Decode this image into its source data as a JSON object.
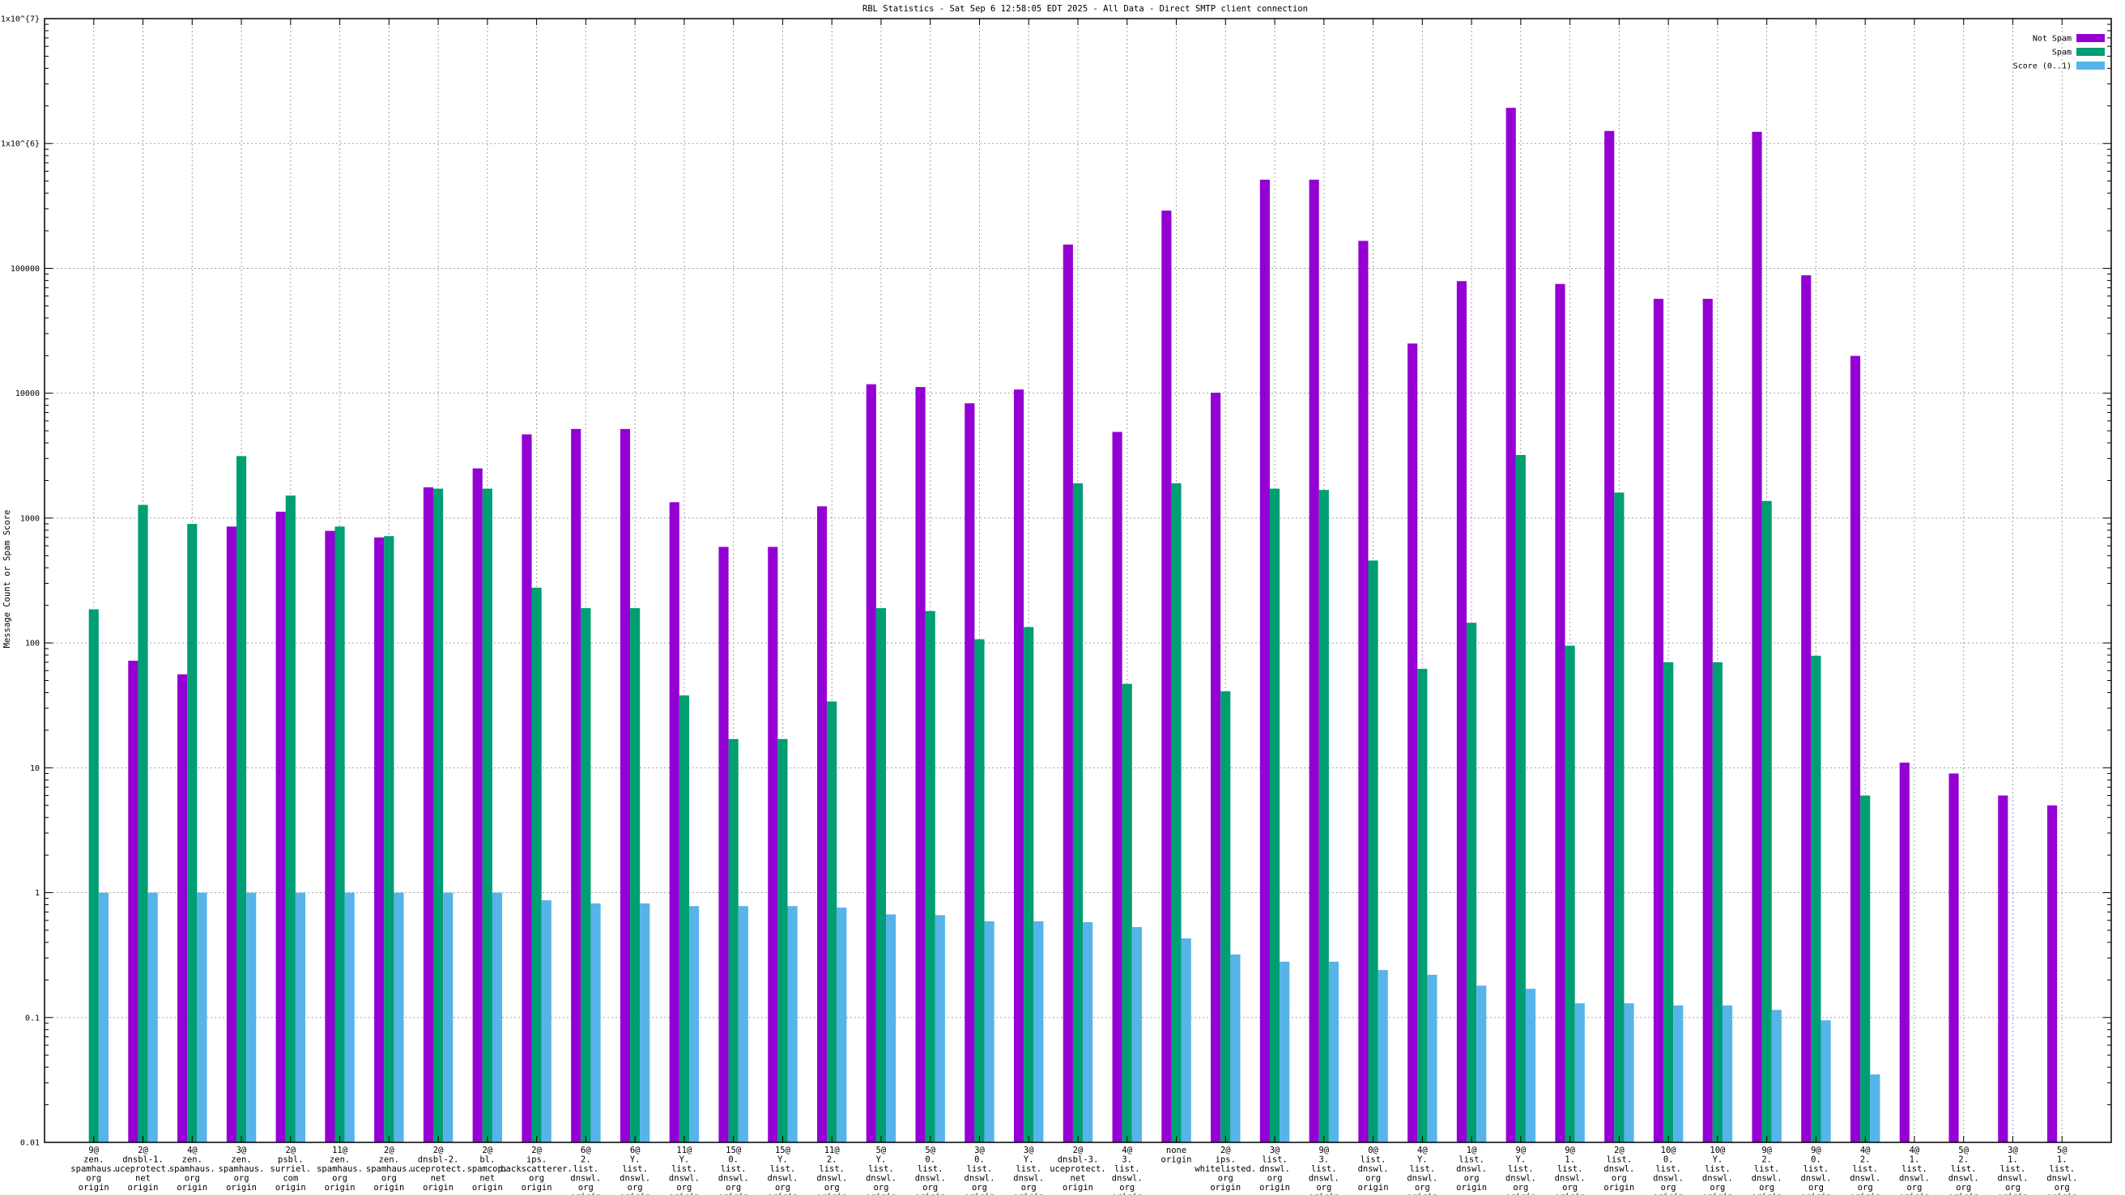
{
  "chart_data": {
    "type": "bar",
    "title": "RBL Statistics - Sat Sep  6 12:58:05 EDT 2025 - All Data - Direct SMTP client connection",
    "xlabel": "",
    "ylabel": "Message Count or Spam Score",
    "yscale": "log",
    "ylim": [
      0.01,
      10000000
    ],
    "grid": true,
    "legend_placement": "top-right",
    "ytick_labels": [
      "0.01",
      "0.1",
      "1",
      "10",
      "100",
      "1000",
      "10000",
      "100000",
      "1x10^{6}",
      "1x10^{7}"
    ],
    "categories": [
      [
        "9@",
        "zen.",
        "spamhaus.",
        "org",
        "origin"
      ],
      [
        "2@",
        "dnsbl-1.",
        "uceprotect.",
        "net",
        "origin"
      ],
      [
        "4@",
        "zen.",
        "spamhaus.",
        "org",
        "origin"
      ],
      [
        "3@",
        "zen.",
        "spamhaus.",
        "org",
        "origin"
      ],
      [
        "2@",
        "psbl.",
        "surriel.",
        "com",
        "origin"
      ],
      [
        "11@",
        "zen.",
        "spamhaus.",
        "org",
        "origin"
      ],
      [
        "2@",
        "zen.",
        "spamhaus.",
        "org",
        "origin"
      ],
      [
        "2@",
        "dnsbl-2.",
        "uceprotect.",
        "net",
        "origin"
      ],
      [
        "2@",
        "bl.",
        "spamcop.",
        "net",
        "origin"
      ],
      [
        "2@",
        "ips.",
        "backscatterer.",
        "org",
        "origin"
      ],
      [
        "6@",
        "2.",
        "list.",
        "dnswl.",
        "org",
        "origin"
      ],
      [
        "6@",
        "Y.",
        "list.",
        "dnswl.",
        "org",
        "origin"
      ],
      [
        "11@",
        "Y.",
        "list.",
        "dnswl.",
        "org",
        "origin"
      ],
      [
        "15@",
        "0.",
        "list.",
        "dnswl.",
        "org",
        "origin"
      ],
      [
        "15@",
        "Y.",
        "list.",
        "dnswl.",
        "org",
        "origin"
      ],
      [
        "11@",
        "2.",
        "list.",
        "dnswl.",
        "org",
        "origin"
      ],
      [
        "5@",
        "Y.",
        "list.",
        "dnswl.",
        "org",
        "origin"
      ],
      [
        "5@",
        "0.",
        "list.",
        "dnswl.",
        "org",
        "origin"
      ],
      [
        "3@",
        "0.",
        "list.",
        "dnswl.",
        "org",
        "origin"
      ],
      [
        "3@",
        "Y.",
        "list.",
        "dnswl.",
        "org",
        "origin"
      ],
      [
        "2@",
        "dnsbl-3.",
        "uceprotect.",
        "net",
        "origin"
      ],
      [
        "4@",
        "3.",
        "list.",
        "dnswl.",
        "org",
        "origin"
      ],
      [
        "none",
        "origin"
      ],
      [
        "2@",
        "ips.",
        "whitelisted.",
        "org",
        "origin"
      ],
      [
        "3@",
        "list.",
        "dnswl.",
        "org",
        "origin"
      ],
      [
        "9@",
        "3.",
        "list.",
        "dnswl.",
        "org",
        "origin"
      ],
      [
        "0@",
        "list.",
        "dnswl.",
        "org",
        "origin"
      ],
      [
        "4@",
        "Y.",
        "list.",
        "dnswl.",
        "org",
        "origin"
      ],
      [
        "1@",
        "list.",
        "dnswl.",
        "org",
        "origin"
      ],
      [
        "9@",
        "Y.",
        "list.",
        "dnswl.",
        "org",
        "origin"
      ],
      [
        "9@",
        "1.",
        "list.",
        "dnswl.",
        "org",
        "origin"
      ],
      [
        "2@",
        "list.",
        "dnswl.",
        "org",
        "origin"
      ],
      [
        "10@",
        "0.",
        "list.",
        "dnswl.",
        "org",
        "origin"
      ],
      [
        "10@",
        "Y.",
        "list.",
        "dnswl.",
        "org",
        "origin"
      ],
      [
        "9@",
        "2.",
        "list.",
        "dnswl.",
        "org",
        "origin"
      ],
      [
        "9@",
        "0.",
        "list.",
        "dnswl.",
        "org",
        "origin"
      ],
      [
        "4@",
        "2.",
        "list.",
        "dnswl.",
        "org",
        "origin"
      ],
      [
        "4@",
        "1.",
        "list.",
        "dnswl.",
        "org",
        "origin"
      ],
      [
        "5@",
        "2.",
        "list.",
        "dnswl.",
        "org",
        "origin"
      ],
      [
        "3@",
        "1.",
        "list.",
        "dnswl.",
        "org",
        "origin"
      ],
      [
        "5@",
        "1.",
        "list.",
        "dnswl.",
        "org",
        "origin"
      ]
    ],
    "series": [
      {
        "name": "Not Spam",
        "color": "#9400d3",
        "values": [
          null,
          72,
          56,
          855,
          1125,
          790,
          700,
          1763,
          2500,
          4680,
          5170,
          5170,
          1340,
          588,
          588,
          1243,
          11800,
          11200,
          8300,
          10700,
          155000,
          4900,
          290000,
          10100,
          513000,
          513000,
          166000,
          25000,
          79000,
          1930000,
          75000,
          1260000,
          57000,
          57000,
          1240000,
          88000,
          19900,
          11,
          9,
          6,
          5
        ]
      },
      {
        "name": "Spam",
        "color": "#009e73",
        "values": [
          186,
          1275,
          898,
          3135,
          1515,
          855,
          717,
          1720,
          1720,
          277,
          190,
          190,
          38,
          17,
          17,
          34,
          190,
          180,
          107,
          134,
          1900,
          47,
          1900,
          41,
          1720,
          1680,
          457,
          62,
          145,
          3200,
          95,
          1600,
          70,
          70,
          1370,
          79,
          6,
          null,
          null,
          null,
          null
        ]
      },
      {
        "name": "Score (0..1)",
        "color": "#56b4e9",
        "values": [
          1,
          1,
          1,
          1,
          1,
          1,
          1,
          1,
          1,
          0.87,
          0.82,
          0.82,
          0.78,
          0.78,
          0.78,
          0.76,
          0.67,
          0.66,
          0.59,
          0.59,
          0.58,
          0.53,
          0.43,
          0.32,
          0.28,
          0.28,
          0.24,
          0.22,
          0.18,
          0.17,
          0.13,
          0.13,
          0.125,
          0.125,
          0.115,
          0.095,
          0.035,
          null,
          null,
          null,
          null
        ]
      }
    ]
  }
}
